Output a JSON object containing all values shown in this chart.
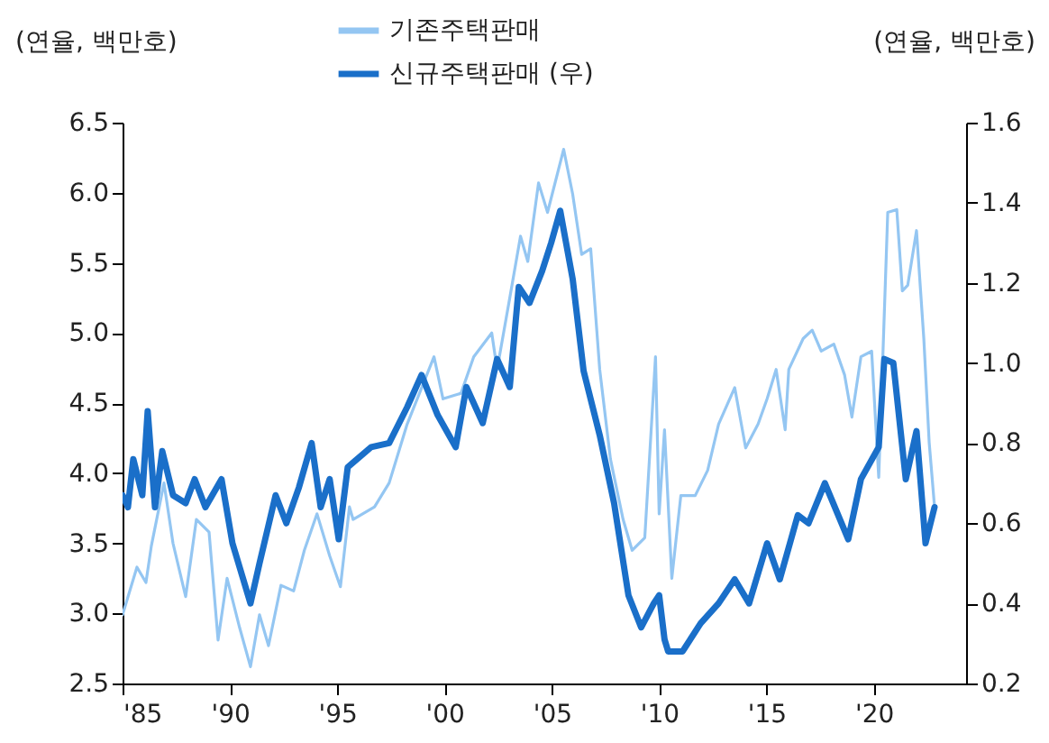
{
  "chart_data": {
    "type": "line",
    "ylabel": "(연율, 백만호)",
    "y2label": "(연율, 백만호)",
    "legend": "top",
    "grid": false,
    "xlim": [
      1985,
      2024.3
    ],
    "xticks": [
      {
        "value": 1985,
        "label": "'85"
      },
      {
        "value": 1990,
        "label": "'90"
      },
      {
        "value": 1995,
        "label": "'95"
      },
      {
        "value": 2000,
        "label": "'00"
      },
      {
        "value": 2005,
        "label": "'05"
      },
      {
        "value": 2010,
        "label": "'10"
      },
      {
        "value": 2015,
        "label": "'15"
      },
      {
        "value": 2020,
        "label": "'20"
      }
    ],
    "ylim": [
      2.5,
      6.5
    ],
    "yticks": [
      2.5,
      {
        "value": 3,
        "label": "3.0"
      },
      3.5,
      {
        "value": 4,
        "label": "4.0"
      },
      4.5,
      {
        "value": 5,
        "label": "5.0"
      },
      5.5,
      {
        "value": 6,
        "label": "6.0"
      },
      6.5
    ],
    "y2lim": [
      0.2,
      1.6
    ],
    "y2ticks": [
      0.2,
      0.4,
      0.6,
      0.8,
      {
        "value": 1,
        "label": "1.0"
      },
      1.2,
      1.4,
      1.6
    ],
    "series": [
      {
        "name": "기존주택판매",
        "color": "#94c6f2",
        "x": [
          1985.0,
          1985.67,
          1986.09,
          1986.34,
          1986.93,
          1987.35,
          1987.94,
          1988.44,
          1989.03,
          1989.45,
          1989.87,
          1990.45,
          1990.96,
          1991.38,
          1991.8,
          1992.38,
          1992.97,
          1993.47,
          1994.06,
          1994.65,
          1995.15,
          1995.57,
          1995.74,
          1996.74,
          1997.42,
          1998.26,
          1999.51,
          1999.93,
          2000.77,
          2001.36,
          2002.2,
          2002.45,
          2003.04,
          2003.54,
          2003.88,
          2004.38,
          2004.8,
          2005.55,
          2005.97,
          2006.39,
          2006.81,
          2007.23,
          2007.73,
          2008.32,
          2008.74,
          2009.33,
          2009.83,
          2010.0,
          2010.25,
          2010.59,
          2011.01,
          2011.68,
          2012.26,
          2012.77,
          2013.52,
          2014.03,
          2014.61,
          2015.03,
          2015.45,
          2015.87,
          2016.04,
          2016.71,
          2017.13,
          2017.55,
          2018.14,
          2018.64,
          2018.98,
          2019.4,
          2019.9,
          2020.23,
          2020.65,
          2021.07,
          2021.33,
          2021.58,
          2021.99,
          2022.33,
          2022.58,
          2022.83
        ],
        "values": [
          2.99,
          3.33,
          3.22,
          3.48,
          3.93,
          3.5,
          3.12,
          3.67,
          3.58,
          2.81,
          3.25,
          2.9,
          2.62,
          2.99,
          2.77,
          3.2,
          3.16,
          3.45,
          3.71,
          3.41,
          3.19,
          3.76,
          3.67,
          3.76,
          3.93,
          4.35,
          4.83,
          4.53,
          4.57,
          4.83,
          5.0,
          4.74,
          5.25,
          5.69,
          5.51,
          6.07,
          5.86,
          6.31,
          5.99,
          5.56,
          5.6,
          4.74,
          4.1,
          3.67,
          3.45,
          3.54,
          4.83,
          3.71,
          4.31,
          3.25,
          3.84,
          3.84,
          4.02,
          4.35,
          4.61,
          4.18,
          4.35,
          4.53,
          4.74,
          4.31,
          4.74,
          4.96,
          5.02,
          4.87,
          4.92,
          4.7,
          4.4,
          4.83,
          4.87,
          3.97,
          5.86,
          5.88,
          5.3,
          5.34,
          5.73,
          4.96,
          4.22,
          3.76
        ]
      },
      {
        "name": "신규주택판매 (우)",
        "color": "#1a6fc9",
        "axis": "y2",
        "x": [
          1985.0,
          1985.25,
          1985.5,
          1985.92,
          1986.17,
          1986.51,
          1986.85,
          1987.35,
          1987.94,
          1988.36,
          1988.86,
          1989.61,
          1990.12,
          1990.96,
          1991.38,
          1992.13,
          1992.63,
          1993.22,
          1993.81,
          1994.23,
          1994.65,
          1995.07,
          1995.49,
          1996.58,
          1997.42,
          1998.26,
          1998.93,
          1999.68,
          2000.52,
          2001.02,
          2001.78,
          2002.45,
          2003.04,
          2003.46,
          2003.96,
          2004.55,
          2004.97,
          2005.39,
          2005.97,
          2006.48,
          2007.23,
          2007.9,
          2008.57,
          2009.16,
          2009.75,
          2010.0,
          2010.25,
          2010.42,
          2011.09,
          2011.93,
          2012.77,
          2013.52,
          2014.19,
          2015.03,
          2015.62,
          2016.46,
          2016.96,
          2017.72,
          2018.81,
          2019.4,
          2020.23,
          2020.49,
          2020.91,
          2021.49,
          2021.99,
          2022.41,
          2022.83
        ],
        "values": [
          0.67,
          0.64,
          0.76,
          0.67,
          0.88,
          0.64,
          0.78,
          0.67,
          0.65,
          0.71,
          0.64,
          0.71,
          0.55,
          0.4,
          0.5,
          0.67,
          0.6,
          0.69,
          0.8,
          0.64,
          0.71,
          0.56,
          0.74,
          0.79,
          0.8,
          0.89,
          0.97,
          0.87,
          0.79,
          0.94,
          0.85,
          1.01,
          0.94,
          1.19,
          1.15,
          1.23,
          1.3,
          1.38,
          1.21,
          0.98,
          0.82,
          0.65,
          0.42,
          0.34,
          0.4,
          0.42,
          0.31,
          0.28,
          0.28,
          0.35,
          0.4,
          0.46,
          0.4,
          0.55,
          0.46,
          0.62,
          0.6,
          0.7,
          0.56,
          0.71,
          0.79,
          1.01,
          1.0,
          0.71,
          0.83,
          0.55,
          0.64
        ]
      }
    ]
  }
}
